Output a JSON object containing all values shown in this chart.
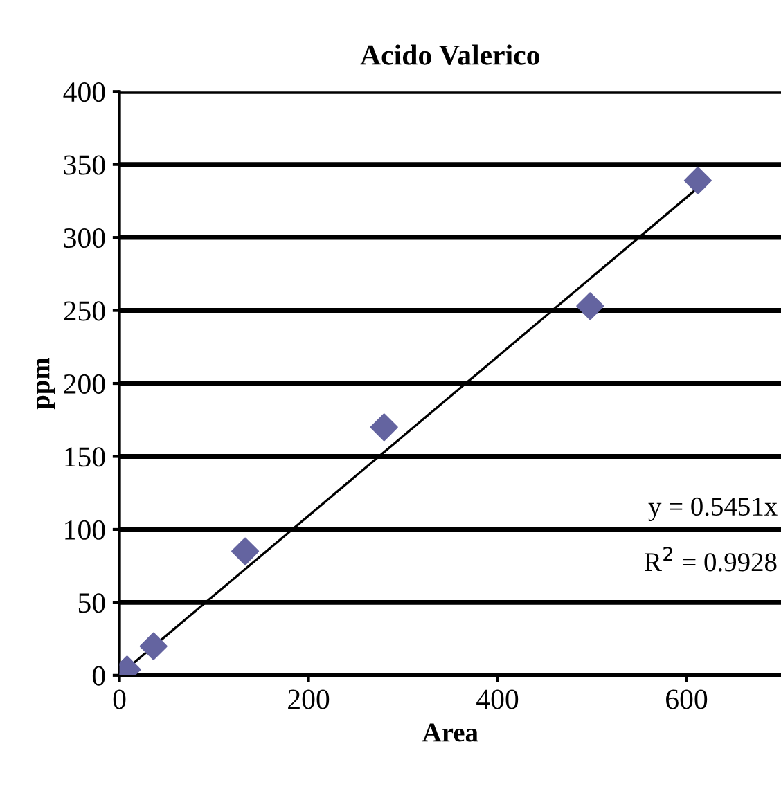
{
  "chart_data": {
    "type": "scatter",
    "title": "Acido Valerico",
    "xlabel": "Area",
    "ylabel": "ppm",
    "xlim": [
      0,
      700
    ],
    "xticks": [
      0,
      200,
      400,
      600
    ],
    "ylim": [
      0,
      400
    ],
    "yticks": [
      0,
      50,
      100,
      150,
      200,
      250,
      300,
      350,
      400
    ],
    "grid": "y",
    "marker": "diamond",
    "series": [
      {
        "color": "#6464a0",
        "x": [
          8,
          36,
          133,
          280,
          498,
          612
        ],
        "values": [
          4,
          20,
          85,
          170,
          253,
          339
        ]
      },
      {
        "type": "line",
        "color": "#000000",
        "x": [
          5,
          612
        ],
        "values": [
          3,
          334
        ],
        "marker": "none"
      }
    ],
    "annotations": [
      "y = 0.5451x",
      "R$^{2}$ = 0.9928"
    ]
  }
}
